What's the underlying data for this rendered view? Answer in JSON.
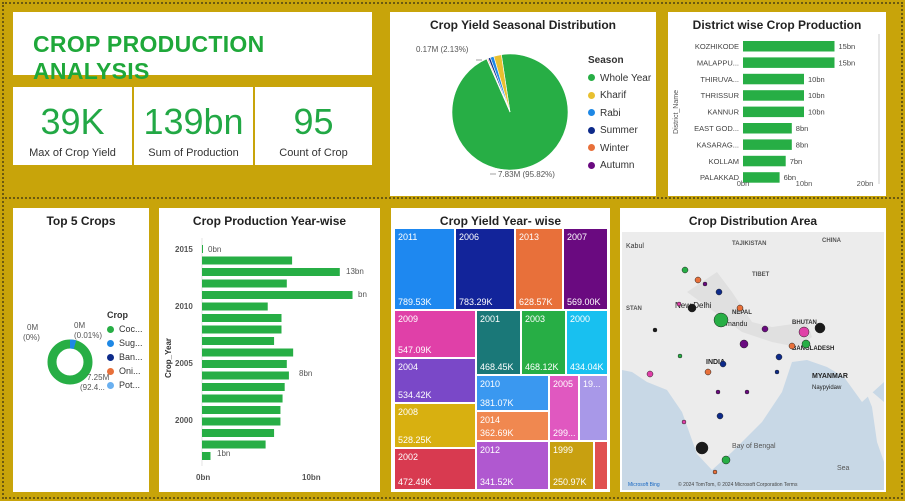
{
  "title": "CROP PRODUCTION ANALYSIS",
  "kpis": [
    {
      "value": "39K",
      "label": "Max of Crop Yield"
    },
    {
      "value": "139bn",
      "label": "Sum of Production"
    },
    {
      "value": "95",
      "label": "Count of Crop"
    }
  ],
  "season_pie": {
    "title": "Crop Yield Seasonal Distribution",
    "legend_title": "Season",
    "label_small": "0.17M (2.13%)",
    "label_big": "7.83M (95.82%)",
    "items": [
      {
        "name": "Whole Year",
        "color": "#27ae45",
        "pct": 95.82
      },
      {
        "name": "Kharif",
        "color": "#e8c030",
        "pct": 2.13
      },
      {
        "name": "Rabi",
        "color": "#1e88e5",
        "pct": 1.0
      },
      {
        "name": "Summer",
        "color": "#0d2a8a",
        "pct": 0.6
      },
      {
        "name": "Winter",
        "color": "#e8703a",
        "pct": 0.3
      },
      {
        "name": "Autumn",
        "color": "#6a0a80",
        "pct": 0.15
      }
    ]
  },
  "district": {
    "title": "District wise Crop Production",
    "ylabel": "District_Name",
    "xticks": [
      "0bn",
      "10bn",
      "20bn"
    ],
    "xmax": 20,
    "rows": [
      {
        "name": "KOZHIKODE",
        "value": 15,
        "label": "15bn"
      },
      {
        "name": "MALAPPU...",
        "value": 15,
        "label": "15bn"
      },
      {
        "name": "THIRUVA...",
        "value": 10,
        "label": "10bn"
      },
      {
        "name": "THRISSUR",
        "value": 10,
        "label": "10bn"
      },
      {
        "name": "KANNUR",
        "value": 10,
        "label": "10bn"
      },
      {
        "name": "EAST GOD...",
        "value": 8,
        "label": "8bn"
      },
      {
        "name": "KASARAG...",
        "value": 8,
        "label": "8bn"
      },
      {
        "name": "KOLLAM",
        "value": 7,
        "label": "7bn"
      },
      {
        "name": "PALAKKAD",
        "value": 6,
        "label": "6bn"
      }
    ]
  },
  "top5": {
    "title": "Top 5 Crops",
    "legend_title": "Crop",
    "label_a": "0M",
    "label_a2": "(0%)",
    "label_b": "0M",
    "label_b2": "(0.01%)",
    "label_c": "7.25M",
    "label_c2": "(92.4...",
    "items": [
      {
        "name": "Coc...",
        "color": "#27ae45"
      },
      {
        "name": "Sug...",
        "color": "#1e88e5"
      },
      {
        "name": "Ban...",
        "color": "#0d2a8a"
      },
      {
        "name": "Oni...",
        "color": "#e8703a"
      },
      {
        "name": "Pot...",
        "color": "#6ab0f0"
      }
    ]
  },
  "yearprod": {
    "title": "Crop Production Year-wise",
    "ylabel": "Crop_Year",
    "xticks": [
      "0bn",
      "10bn"
    ],
    "yticks": [
      "2015",
      "2010",
      "2005",
      "2000"
    ],
    "label_top": "0bn",
    "label_13": "13bn",
    "label_bn": "bn",
    "label_8": "8bn",
    "label_1": "1bn",
    "values": [
      0.05,
      8.5,
      13,
      8,
      14.2,
      6.2,
      7.5,
      7.5,
      6.8,
      8.6,
      8,
      8.2,
      7.8,
      7.6,
      7.4,
      7.4,
      6.8,
      6,
      0.8
    ]
  },
  "treemap": {
    "title": "Crop Yield Year- wise",
    "cells": [
      {
        "year": "2011",
        "value": "789.53K",
        "color": "#1e88f0"
      },
      {
        "year": "2006",
        "value": "783.29K",
        "color": "#12249a"
      },
      {
        "year": "2013",
        "value": "628.57K",
        "color": "#e8703a"
      },
      {
        "year": "2007",
        "value": "569.00K",
        "color": "#6a0a80"
      },
      {
        "year": "2009",
        "value": "547.09K",
        "color": "#e040a8"
      },
      {
        "year": "2001",
        "value": "468.45K",
        "color": "#1a7878"
      },
      {
        "year": "2003",
        "value": "468.12K",
        "color": "#27ae45"
      },
      {
        "year": "2000",
        "value": "434.04K",
        "color": "#18c0f0"
      },
      {
        "year": "2004",
        "value": "534.42K",
        "color": "#7a48c8"
      },
      {
        "year": "2010",
        "value": "381.07K",
        "color": "#3a98f0"
      },
      {
        "year": "2005",
        "value": "299...",
        "color": "#e058c0"
      },
      {
        "year": "19...",
        "value": "",
        "color": "#a898e8"
      },
      {
        "year": "2008",
        "value": "528.25K",
        "color": "#d8b010"
      },
      {
        "year": "2014",
        "value": "362.69K",
        "color": "#f08850"
      },
      {
        "year": "2002",
        "value": "472.49K",
        "color": "#d83a50"
      },
      {
        "year": "2012",
        "value": "341.52K",
        "color": "#b058d0"
      },
      {
        "year": "1999",
        "value": "250.97K",
        "color": "#c8a010"
      },
      {
        "year": "",
        "value": "",
        "color": "#e05050"
      }
    ]
  },
  "map": {
    "title": "Crop Distribution Area",
    "labels": [
      "Kabul",
      "TAJIKISTAN",
      "CHINA",
      "TIBET",
      "STAN",
      "New Delhi",
      "NEPAL",
      "mandu",
      "BHUTAN",
      "INDIA",
      "BANGLADESH",
      "MYANMAR",
      "Naypyidaw",
      "Bay of Bengal",
      "Sea"
    ],
    "footer": "Microsoft Bing",
    "copyright": "© 2024 TomTom, © 2024 Microsoft Corporation  Terms"
  }
}
